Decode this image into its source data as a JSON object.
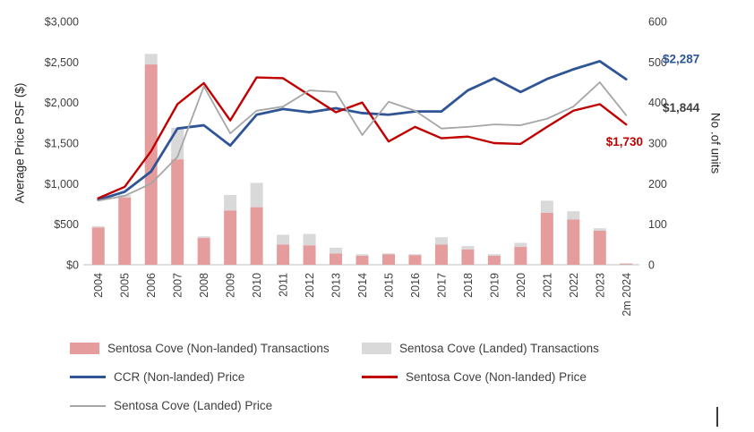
{
  "chart_data": {
    "type": "bar",
    "subtype": "combo-stacked-bar-and-lines",
    "title": "",
    "categories": [
      "2004",
      "2005",
      "2006",
      "2007",
      "2008",
      "2009",
      "2010",
      "2011",
      "2012",
      "2013",
      "2014",
      "2015",
      "2016",
      "2017",
      "2018",
      "2019",
      "2020",
      "2021",
      "2022",
      "2023",
      "2m 2024"
    ],
    "left_axis": {
      "label": "Average Price PSF ($)",
      "min": 0,
      "max": 3000,
      "step": 500,
      "tick_prefix": "$"
    },
    "right_axis": {
      "label": "No .of units",
      "min": 0,
      "max": 600,
      "step": 100
    },
    "grid": "off",
    "legend_position": "bottom-left",
    "bar_series": [
      {
        "name": "Sentosa Cove (Non-landed) Transactions",
        "axis": "right",
        "color": "#e49c9c",
        "values": [
          92,
          166,
          494,
          260,
          66,
          134,
          142,
          50,
          48,
          28,
          22,
          26,
          24,
          50,
          38,
          22,
          44,
          128,
          112,
          84,
          3
        ]
      },
      {
        "name": "Sentosa Cove (Landed) Transactions",
        "axis": "right",
        "color": "#d9d9d9",
        "values": [
          3,
          6,
          26,
          78,
          4,
          38,
          60,
          24,
          28,
          14,
          4,
          2,
          2,
          18,
          8,
          4,
          10,
          30,
          20,
          6,
          1
        ]
      }
    ],
    "line_series": [
      {
        "name": "CCR (Non-landed) Price",
        "axis": "left",
        "color": "#2f5597",
        "end_label": "$2,287",
        "end_label_color": "#2f5597",
        "values": [
          800,
          900,
          1150,
          1680,
          1720,
          1470,
          1850,
          1920,
          1880,
          1930,
          1870,
          1850,
          1890,
          1890,
          2150,
          2300,
          2130,
          2290,
          2410,
          2510,
          2287
        ]
      },
      {
        "name": "Sentosa Cove (Non-landed) Price",
        "axis": "left",
        "color": "#c00000",
        "end_label": "$1,730",
        "end_label_color": "#c00000",
        "values": [
          820,
          960,
          1400,
          1980,
          2240,
          1780,
          2310,
          2300,
          2090,
          1880,
          2000,
          1520,
          1700,
          1560,
          1580,
          1500,
          1490,
          1700,
          1900,
          1980,
          1730
        ]
      },
      {
        "name": "Sentosa Cove (Landed) Price",
        "axis": "left",
        "color": "#a6a6a6",
        "end_label": "$1,844",
        "end_label_color": "#404040",
        "values": [
          790,
          850,
          1000,
          1330,
          2200,
          1620,
          1900,
          1950,
          2150,
          2130,
          1600,
          2010,
          1900,
          1680,
          1700,
          1730,
          1720,
          1800,
          1950,
          2250,
          1844
        ]
      }
    ]
  }
}
